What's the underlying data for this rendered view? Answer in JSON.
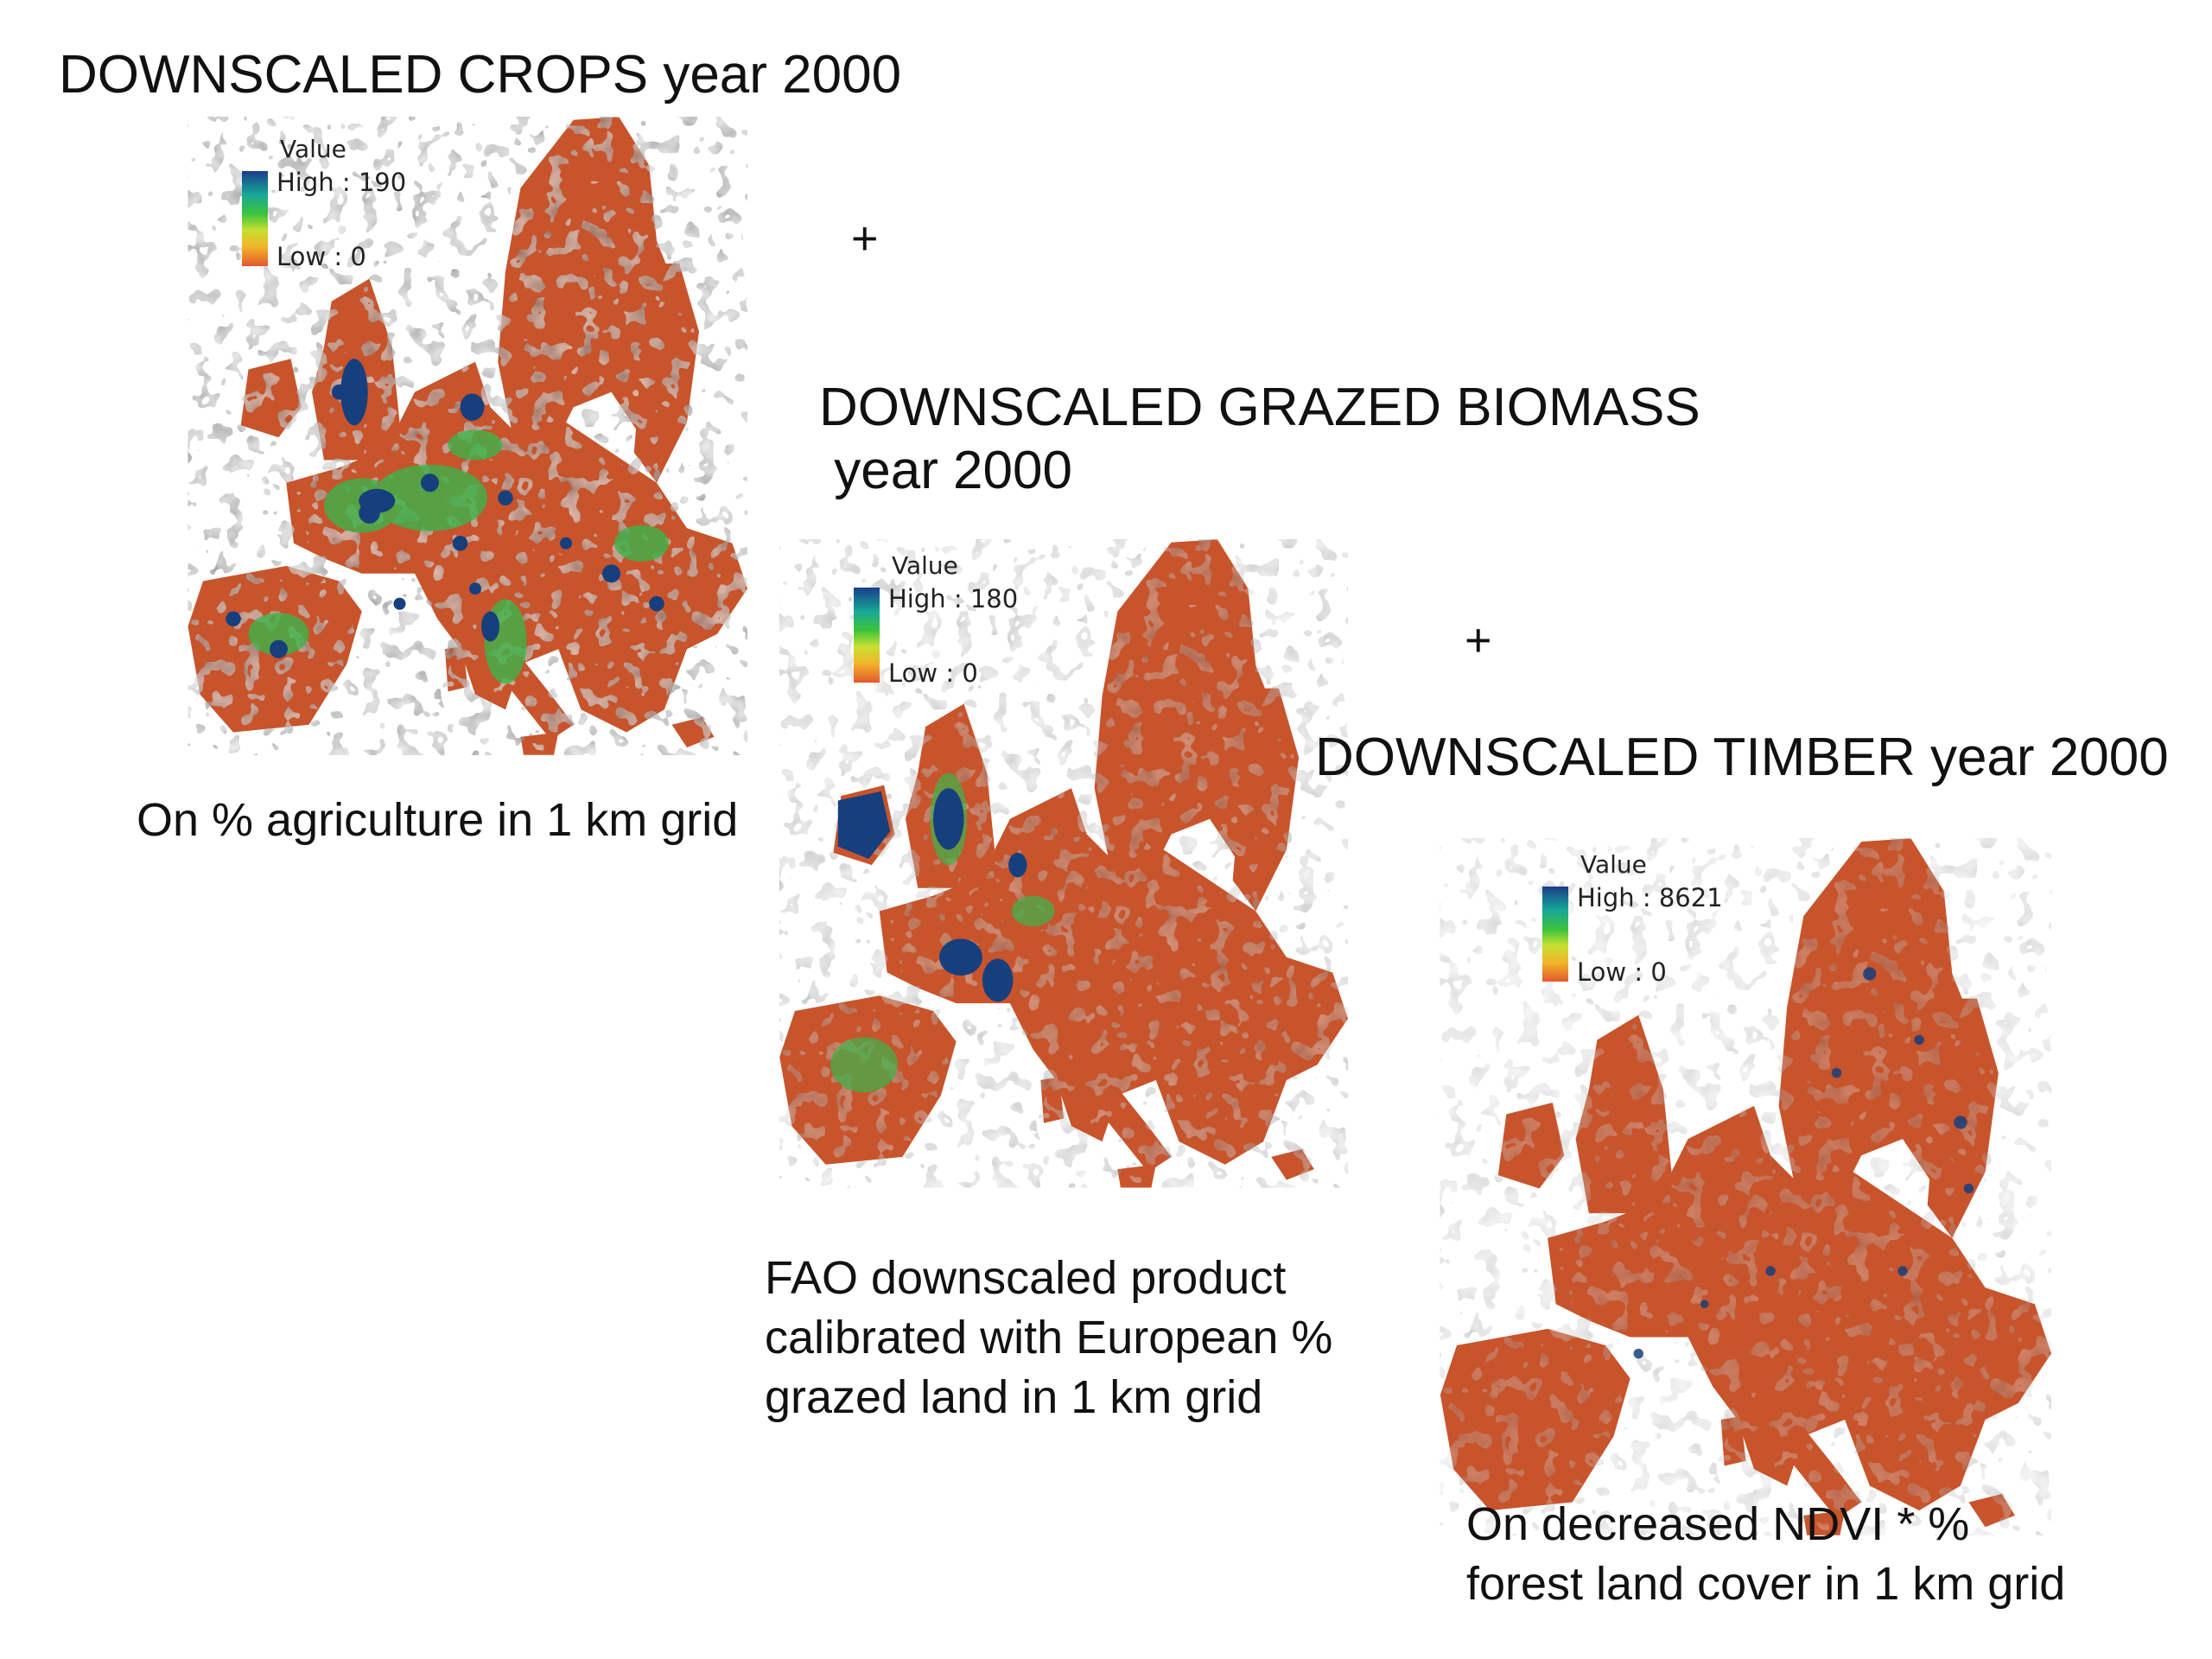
{
  "panels": {
    "crops": {
      "title": "DOWNSCALED CROPS year 2000",
      "legend": {
        "heading": "Value",
        "high": "High : 190",
        "low": "Low : 0"
      },
      "caption": "On % agriculture in 1 km grid"
    },
    "grazed": {
      "title_line1": "DOWNSCALED GRAZED BIOMASS",
      "title_line2": " year 2000",
      "legend": {
        "heading": "Value",
        "high": "High : 180",
        "low": "Low : 0"
      },
      "caption": [
        "FAO downscaled product",
        "calibrated with European %",
        "grazed land in 1 km grid"
      ]
    },
    "timber": {
      "title": "DOWNSCALED TIMBER year 2000",
      "legend": {
        "heading": "Value",
        "high": "High : 8621",
        "low": "Low : 0"
      },
      "caption": [
        "On decreased NDVI * %",
        "forest land cover in 1 km grid"
      ]
    }
  },
  "plus_signs": [
    "+",
    "+"
  ],
  "colors": {
    "base": "#c8542c",
    "yellow": "#d9d62e",
    "green": "#3cb44a",
    "blue": "#163f7e",
    "background": "#ffffff"
  }
}
